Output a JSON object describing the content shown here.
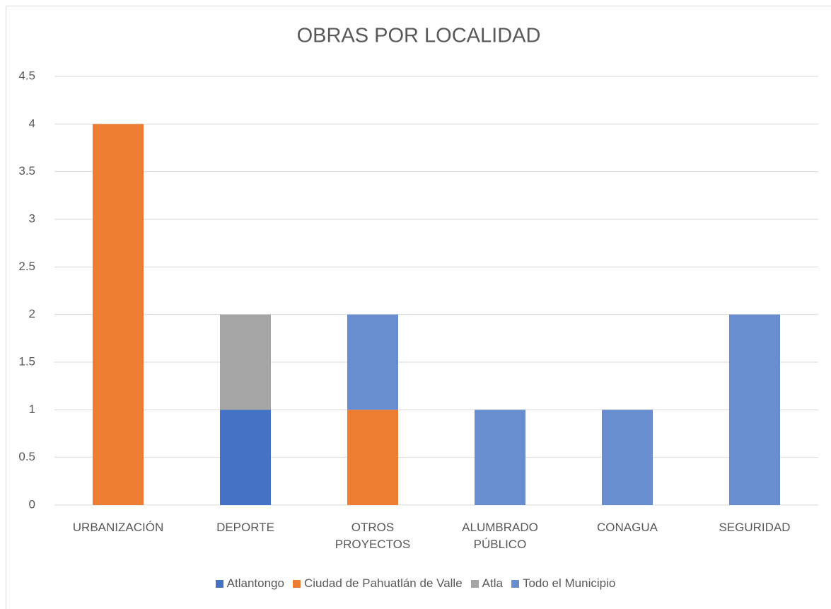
{
  "chart_data": {
    "type": "stacked_bar",
    "title": "OBRAS POR LOCALIDAD",
    "categories": [
      "URBANIZACIÓN",
      "DEPORTE",
      "OTROS PROYECTOS",
      "ALUMBRADO PÚBLICO",
      "CONAGUA",
      "SEGURIDAD"
    ],
    "series": [
      {
        "name": "Atlantongo",
        "color": "#4472c4",
        "values": [
          0,
          1,
          0,
          0,
          0,
          0
        ]
      },
      {
        "name": "Ciudad de Pahuatlán de Valle",
        "color": "#ed7d31",
        "values": [
          4,
          0,
          1,
          0,
          0,
          0
        ]
      },
      {
        "name": "Atla",
        "color": "#a5a5a5",
        "values": [
          0,
          1,
          0,
          0,
          0,
          0
        ]
      },
      {
        "name": "Todo el Municipio",
        "color": "#698ed0",
        "values": [
          0,
          0,
          1,
          1,
          1,
          2
        ]
      }
    ],
    "ylim": [
      0,
      4.5
    ],
    "yticks": [
      0,
      0.5,
      1,
      1.5,
      2,
      2.5,
      3,
      3.5,
      4,
      4.5
    ],
    "grid": true,
    "legend": "bottom"
  }
}
